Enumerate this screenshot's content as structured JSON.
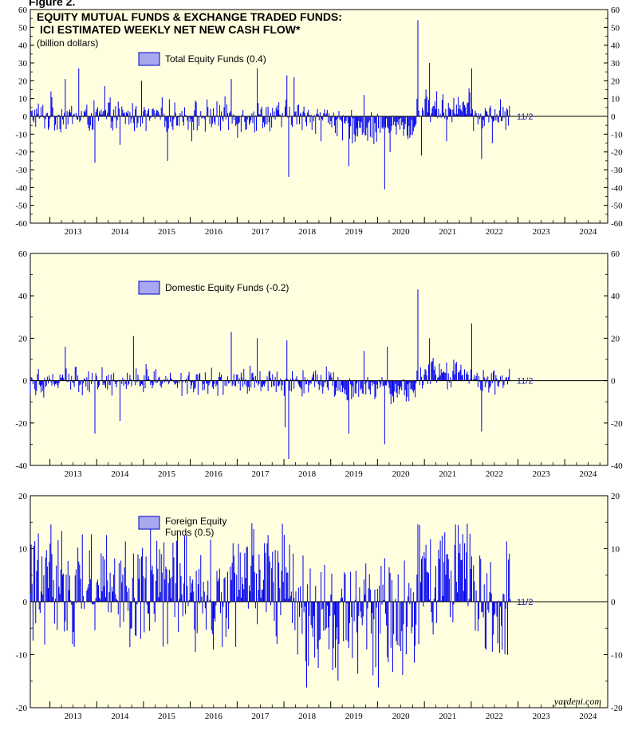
{
  "figure_label": "Figure 2.",
  "source": "yardeni.com",
  "colors": {
    "background": "#ffffe0",
    "bar": "#0000ee",
    "legend_fill": "#a8a8f0"
  },
  "x_axis": {
    "years": [
      "2013",
      "2014",
      "2015",
      "2016",
      "2017",
      "2018",
      "2019",
      "2020",
      "2021",
      "2022",
      "2023",
      "2024"
    ]
  },
  "chart_data": [
    {
      "type": "bar",
      "title_line1": "EQUITY MUTUAL FUNDS & EXCHANGE TRADED FUNDS:",
      "title_line2": "ICI ESTIMATED WEEKLY NET NEW CASH FLOW*",
      "subtitle": "(billion dollars)",
      "legend": "Total Equity Funds (0.4)",
      "date_note": "11/2",
      "ylim": [
        -60,
        60
      ],
      "ticks": [
        -60,
        -50,
        -40,
        -30,
        -20,
        -10,
        0,
        10,
        20,
        30,
        40,
        50,
        60
      ],
      "xlim": [
        "2012-08",
        "2024-12"
      ],
      "last_date": "2022-11-02",
      "spikes": [
        {
          "date": "2013-01-09",
          "value": 14
        },
        {
          "date": "2013-05-01",
          "value": 21
        },
        {
          "date": "2013-08-14",
          "value": 27
        },
        {
          "date": "2013-12-18",
          "value": -26
        },
        {
          "date": "2014-03-05",
          "value": 17
        },
        {
          "date": "2014-07-02",
          "value": -16
        },
        {
          "date": "2014-12-17",
          "value": 20
        },
        {
          "date": "2015-07-08",
          "value": -25
        },
        {
          "date": "2016-01-13",
          "value": -14
        },
        {
          "date": "2016-11-16",
          "value": 21
        },
        {
          "date": "2017-01-04",
          "value": -12
        },
        {
          "date": "2017-06-07",
          "value": 27
        },
        {
          "date": "2018-01-24",
          "value": 23
        },
        {
          "date": "2018-02-07",
          "value": -34
        },
        {
          "date": "2018-03-21",
          "value": 22
        },
        {
          "date": "2018-10-17",
          "value": -14
        },
        {
          "date": "2019-05-22",
          "value": -28
        },
        {
          "date": "2019-09-18",
          "value": 12
        },
        {
          "date": "2020-02-26",
          "value": -41
        },
        {
          "date": "2020-04-08",
          "value": -20
        },
        {
          "date": "2020-11-11",
          "value": 54
        },
        {
          "date": "2020-12-09",
          "value": -22
        },
        {
          "date": "2021-02-10",
          "value": 30
        },
        {
          "date": "2021-06-23",
          "value": -14
        },
        {
          "date": "2022-01-05",
          "value": 27
        },
        {
          "date": "2022-03-23",
          "value": -24
        },
        {
          "date": "2022-06-15",
          "value": -15
        },
        {
          "date": "2022-11-02",
          "value": 0.4
        }
      ]
    },
    {
      "type": "bar",
      "legend": "Domestic Equity Funds (-0.2)",
      "date_note": "11/2",
      "ylim": [
        -40,
        60
      ],
      "ticks": [
        -40,
        -20,
        0,
        20,
        40,
        60
      ],
      "xlim": [
        "2012-08",
        "2024-12"
      ],
      "last_date": "2022-11-02",
      "spikes": [
        {
          "date": "2013-05-01",
          "value": 16
        },
        {
          "date": "2013-12-18",
          "value": -25
        },
        {
          "date": "2014-10-15",
          "value": 21
        },
        {
          "date": "2014-07-02",
          "value": -19
        },
        {
          "date": "2016-11-16",
          "value": 23
        },
        {
          "date": "2017-06-07",
          "value": 20
        },
        {
          "date": "2018-01-24",
          "value": 19
        },
        {
          "date": "2018-02-07",
          "value": -37
        },
        {
          "date": "2018-01-10",
          "value": -22
        },
        {
          "date": "2019-05-22",
          "value": -25
        },
        {
          "date": "2019-09-18",
          "value": 14
        },
        {
          "date": "2020-02-26",
          "value": -30
        },
        {
          "date": "2020-03-18",
          "value": 16
        },
        {
          "date": "2020-11-11",
          "value": 43
        },
        {
          "date": "2021-02-10",
          "value": 20
        },
        {
          "date": "2022-01-05",
          "value": 27
        },
        {
          "date": "2022-03-23",
          "value": -24
        },
        {
          "date": "2022-11-02",
          "value": -0.2
        }
      ]
    },
    {
      "type": "bar",
      "legend_line1": "Foreign Equity",
      "legend_line2": "Funds (0.5)",
      "date_note": "11/2",
      "ylim": [
        -20,
        20
      ],
      "ticks": [
        -20,
        -10,
        0,
        10,
        20
      ],
      "xlim": [
        "2012-08",
        "2024-12"
      ],
      "last_date": "2022-11-02",
      "spikes": [
        {
          "date": "2014-10-01",
          "value": -5
        },
        {
          "date": "2014-12-10",
          "value": -7
        },
        {
          "date": "2015-04-15",
          "value": 11.5
        },
        {
          "date": "2015-07-08",
          "value": -8
        },
        {
          "date": "2017-05-10",
          "value": 13.7
        },
        {
          "date": "2017-08-23",
          "value": 11
        },
        {
          "date": "2018-12-19",
          "value": -9
        },
        {
          "date": "2019-10-09",
          "value": -9
        },
        {
          "date": "2020-03-18",
          "value": -10.5
        },
        {
          "date": "2020-10-14",
          "value": -11.5
        },
        {
          "date": "2021-02-17",
          "value": 11.8
        },
        {
          "date": "2021-05-05",
          "value": 11.5
        },
        {
          "date": "2022-03-09",
          "value": 8.7
        },
        {
          "date": "2022-11-02",
          "value": 0.5
        }
      ]
    }
  ]
}
